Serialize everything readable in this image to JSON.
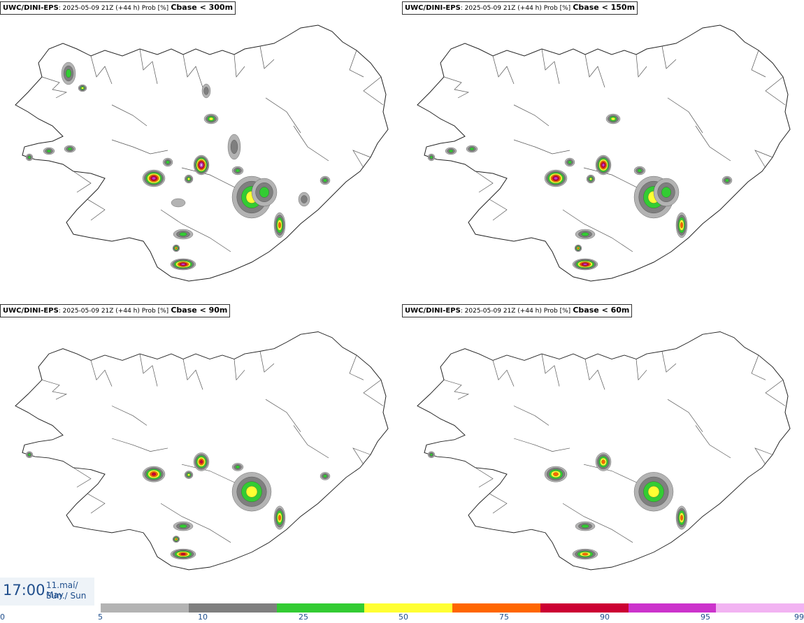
{
  "panels": [
    {
      "model": "UWC/DINI-EPS",
      "meta": ": 2025-05-09 21Z (+44 h) Prob [%]",
      "threshold": "Cbase < 300m",
      "level": 4
    },
    {
      "model": "UWC/DINI-EPS",
      "meta": ": 2025-05-09 21Z (+44 h) Prob [%]",
      "threshold": "Cbase < 150m",
      "level": 3
    },
    {
      "model": "UWC/DINI-EPS",
      "meta": ": 2025-05-09 21Z (+44 h) Prob [%]",
      "threshold": "Cbase < 90m",
      "level": 2
    },
    {
      "model": "UWC/DINI-EPS",
      "meta": ": 2025-05-09 21Z (+44 h) Prob [%]",
      "threshold": "Cbase < 60m",
      "level": 1
    }
  ],
  "valid_time": {
    "time": "17:00",
    "date_line": "11.maí/ May",
    "day_line": "Sun./ Sun"
  },
  "legend": {
    "ticks": [
      "0",
      "5",
      "10",
      "25",
      "50",
      "75",
      "90",
      "95",
      "99"
    ],
    "colors": [
      "#b3b3b3",
      "#7f7f7f",
      "#33cc33",
      "#ffff33",
      "#ff6600",
      "#cc0033",
      "#cc33cc",
      "#f2b3f2"
    ]
  }
}
